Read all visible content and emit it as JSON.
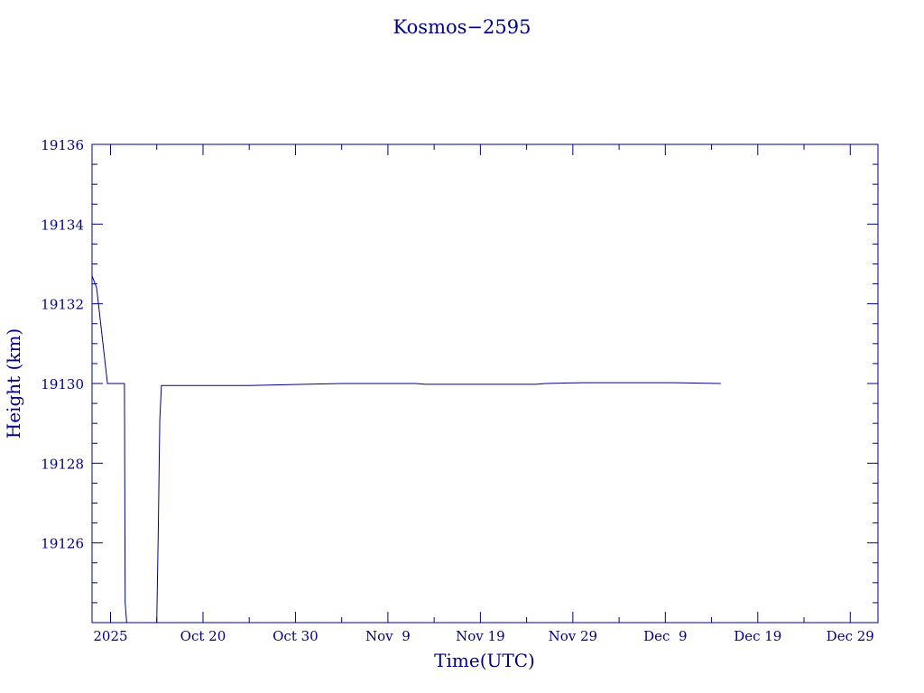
{
  "chart_data": {
    "type": "line",
    "title": "Kosmos−2595",
    "xlabel": "Time(UTC)",
    "ylabel": "Height (km)",
    "ylim": [
      19124,
      19136
    ],
    "xlim": [
      "2025-10-08",
      "2026-01-01"
    ],
    "x_tick_labels": [
      {
        "date": "2025-10-10",
        "text": "2025"
      },
      {
        "date": "2025-10-20",
        "text": "Oct 20"
      },
      {
        "date": "2025-10-30",
        "text": "Oct 30"
      },
      {
        "date": "2025-11-09",
        "text": "Nov  9"
      },
      {
        "date": "2025-11-19",
        "text": "Nov 19"
      },
      {
        "date": "2025-11-29",
        "text": "Nov 29"
      },
      {
        "date": "2025-12-09",
        "text": "Dec  9"
      },
      {
        "date": "2025-12-19",
        "text": "Dec 19"
      },
      {
        "date": "2025-12-29",
        "text": "Dec 29"
      }
    ],
    "y_tick_labels": [
      "19126",
      "19128",
      "19130",
      "19132",
      "19134",
      "19136"
    ],
    "grid": false,
    "series": [
      {
        "color": "#00008b",
        "points": [
          {
            "x": "2025-10-08T00:00",
            "y": 19132.7
          },
          {
            "x": "2025-10-08T12:00",
            "y": 19132.4
          },
          {
            "x": "2025-10-09T16:00",
            "y": 19130.0
          },
          {
            "x": "2025-10-11T12:00",
            "y": 19130.0
          },
          {
            "x": "2025-10-11T12:30",
            "y": 19128.8
          },
          {
            "x": "2025-10-11T14:00",
            "y": 19124.5
          },
          {
            "x": "2025-10-11T18:00",
            "y": 19124.0
          },
          {
            "x": "2025-10-15T00:00",
            "y": 19124.0
          },
          {
            "x": "2025-10-15T04:00",
            "y": 19126.3
          },
          {
            "x": "2025-10-15T06:00",
            "y": 19127.8
          },
          {
            "x": "2025-10-15T08:00",
            "y": 19129.1
          },
          {
            "x": "2025-10-15T12:00",
            "y": 19129.95
          },
          {
            "x": "2025-10-25T00:00",
            "y": 19129.95
          },
          {
            "x": "2025-10-31T00:00",
            "y": 19129.98
          },
          {
            "x": "2025-11-04T00:00",
            "y": 19130.0
          },
          {
            "x": "2025-11-12T00:00",
            "y": 19130.0
          },
          {
            "x": "2025-11-13T00:00",
            "y": 19129.98
          },
          {
            "x": "2025-11-25T00:00",
            "y": 19129.98
          },
          {
            "x": "2025-11-26T00:00",
            "y": 19130.0
          },
          {
            "x": "2025-11-30T00:00",
            "y": 19130.02
          },
          {
            "x": "2025-12-10T00:00",
            "y": 19130.02
          },
          {
            "x": "2025-12-15T00:00",
            "y": 19130.0
          }
        ]
      }
    ]
  }
}
